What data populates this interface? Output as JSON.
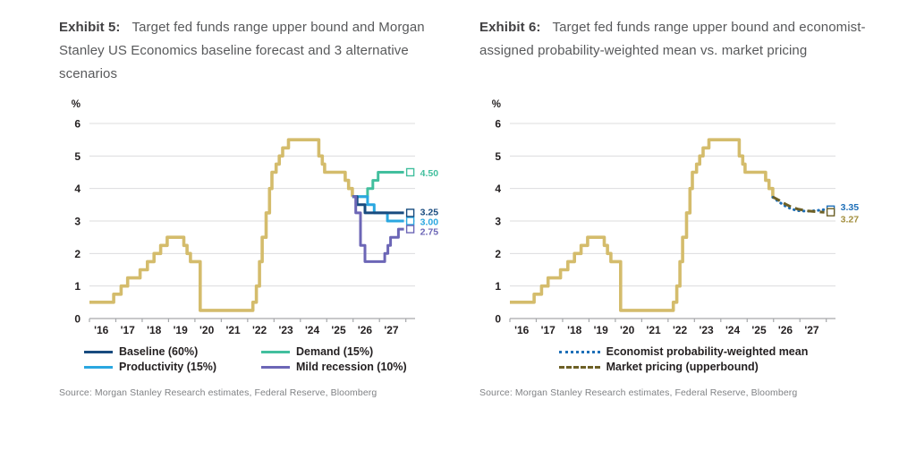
{
  "panels": [
    {
      "exhibit_label": "Exhibit 5:",
      "title": "Target fed funds range upper bound and Morgan Stanley US Economics baseline forecast and 3 alternative scenarios",
      "source": "Source: Morgan Stanley Research estimates, Federal Reserve, Bloomberg"
    },
    {
      "exhibit_label": "Exhibit 6:",
      "title": "Target fed funds range upper bound and economist-assigned probability-weighted mean vs. market pricing",
      "source": "Source: Morgan Stanley Research estimates, Federal Reserve, Bloomberg"
    }
  ],
  "colors": {
    "history_gold": "#D4BC6C",
    "baseline_navy": "#184B7F",
    "productivity_blue": "#2AA7E0",
    "demand_teal": "#42BF9E",
    "recession_purple": "#6C66B6",
    "econ_mean_blue": "#1E6FB8",
    "market_olive": "#6D6026",
    "market_label": "#A38F3F",
    "grid": "#DCDCDE",
    "axis": "#A6A8AB",
    "tick_text": "#231F20"
  },
  "chart_data": [
    {
      "type": "line",
      "title": "Exhibit 5: Target fed funds range upper bound and Morgan Stanley US Economics baseline forecast and 3 alternative scenarios",
      "ylabel": "%",
      "ylim": [
        0,
        6
      ],
      "yticks": [
        0,
        1,
        2,
        3,
        4,
        5,
        6
      ],
      "x_years": [
        2016,
        2017,
        2018,
        2019,
        2020,
        2021,
        2022,
        2023,
        2024,
        2025,
        2026,
        2027
      ],
      "xtick_labels": [
        "'16",
        "'17",
        "'18",
        "'19",
        "'20",
        "'21",
        "'22",
        "'23",
        "'24",
        "'25",
        "'26",
        "'27"
      ],
      "grid": true,
      "legend_position": "bottom",
      "series": [
        {
          "name": "Fed funds target upper bound (history)",
          "color": "#D4BC6C",
          "style": "solid",
          "width": 3.6,
          "step": true,
          "points": [
            [
              2016.0,
              0.5
            ],
            [
              2016.92,
              0.75
            ],
            [
              2017.2,
              1.0
            ],
            [
              2017.45,
              1.25
            ],
            [
              2017.92,
              1.5
            ],
            [
              2018.2,
              1.75
            ],
            [
              2018.45,
              2.0
            ],
            [
              2018.7,
              2.25
            ],
            [
              2018.95,
              2.5
            ],
            [
              2019.58,
              2.25
            ],
            [
              2019.7,
              2.0
            ],
            [
              2019.83,
              1.75
            ],
            [
              2020.2,
              0.25
            ],
            [
              2022.2,
              0.5
            ],
            [
              2022.33,
              1.0
            ],
            [
              2022.45,
              1.75
            ],
            [
              2022.55,
              2.5
            ],
            [
              2022.7,
              3.25
            ],
            [
              2022.83,
              4.0
            ],
            [
              2022.92,
              4.5
            ],
            [
              2023.08,
              4.75
            ],
            [
              2023.2,
              5.0
            ],
            [
              2023.33,
              5.25
            ],
            [
              2023.55,
              5.5
            ],
            [
              2024.7,
              5.0
            ],
            [
              2024.83,
              4.75
            ],
            [
              2024.92,
              4.5
            ],
            [
              2025.7,
              4.25
            ],
            [
              2025.83,
              4.0
            ],
            [
              2025.97,
              3.75
            ]
          ]
        },
        {
          "name": "Demand (15%)",
          "color": "#42BF9E",
          "style": "solid",
          "width": 3,
          "step": true,
          "points": [
            [
              2025.97,
              3.75
            ],
            [
              2026.55,
              4.0
            ],
            [
              2026.75,
              4.25
            ],
            [
              2026.95,
              4.5
            ],
            [
              2027.93,
              4.5
            ]
          ],
          "end_label": "4.50",
          "label_dy": 1
        },
        {
          "name": "Productivity (15%)",
          "color": "#2AA7E0",
          "style": "solid",
          "width": 3,
          "step": true,
          "points": [
            [
              2025.97,
              3.75
            ],
            [
              2026.55,
              3.5
            ],
            [
              2026.8,
              3.25
            ],
            [
              2027.3,
              3.0
            ],
            [
              2027.93,
              3.0
            ]
          ],
          "end_label": "3.00",
          "label_dy": 1
        },
        {
          "name": "Baseline (60%)",
          "color": "#184B7F",
          "style": "solid",
          "width": 3,
          "step": true,
          "points": [
            [
              2025.97,
              3.75
            ],
            [
              2026.15,
              3.5
            ],
            [
              2026.45,
              3.25
            ],
            [
              2027.93,
              3.25
            ]
          ],
          "end_label": "3.25",
          "label_dy": -1
        },
        {
          "name": "Mild recession (10%)",
          "color": "#6C66B6",
          "style": "solid",
          "width": 3,
          "step": true,
          "points": [
            [
              2025.97,
              3.75
            ],
            [
              2026.1,
              3.25
            ],
            [
              2026.28,
              2.25
            ],
            [
              2026.45,
              1.75
            ],
            [
              2027.2,
              2.0
            ],
            [
              2027.32,
              2.25
            ],
            [
              2027.42,
              2.5
            ],
            [
              2027.72,
              2.75
            ],
            [
              2027.93,
              2.75
            ]
          ],
          "end_label": "2.75",
          "label_dy": 3
        }
      ],
      "legend": [
        {
          "label": "Baseline (60%)",
          "color": "#184B7F",
          "style": "solid"
        },
        {
          "label": "Demand (15%)",
          "color": "#42BF9E",
          "style": "solid"
        },
        {
          "label": "Productivity (15%)",
          "color": "#2AA7E0",
          "style": "solid"
        },
        {
          "label": "Mild recession (10%)",
          "color": "#6C66B6",
          "style": "solid"
        }
      ],
      "legend_layout": "two-column"
    },
    {
      "type": "line",
      "title": "Exhibit 6: Target fed funds range upper bound and economist-assigned probability-weighted mean vs. market pricing",
      "ylabel": "%",
      "ylim": [
        0,
        6
      ],
      "yticks": [
        0,
        1,
        2,
        3,
        4,
        5,
        6
      ],
      "x_years": [
        2016,
        2017,
        2018,
        2019,
        2020,
        2021,
        2022,
        2023,
        2024,
        2025,
        2026,
        2027
      ],
      "xtick_labels": [
        "'16",
        "'17",
        "'18",
        "'19",
        "'20",
        "'21",
        "'22",
        "'23",
        "'24",
        "'25",
        "'26",
        "'27"
      ],
      "grid": true,
      "legend_position": "bottom",
      "series": [
        {
          "name": "Fed funds target upper bound (history)",
          "color": "#D4BC6C",
          "style": "solid",
          "width": 3.6,
          "step": true,
          "points": [
            [
              2016.0,
              0.5
            ],
            [
              2016.92,
              0.75
            ],
            [
              2017.2,
              1.0
            ],
            [
              2017.45,
              1.25
            ],
            [
              2017.92,
              1.5
            ],
            [
              2018.2,
              1.75
            ],
            [
              2018.45,
              2.0
            ],
            [
              2018.7,
              2.25
            ],
            [
              2018.95,
              2.5
            ],
            [
              2019.58,
              2.25
            ],
            [
              2019.7,
              2.0
            ],
            [
              2019.83,
              1.75
            ],
            [
              2020.2,
              0.25
            ],
            [
              2022.2,
              0.5
            ],
            [
              2022.33,
              1.0
            ],
            [
              2022.45,
              1.75
            ],
            [
              2022.55,
              2.5
            ],
            [
              2022.7,
              3.25
            ],
            [
              2022.83,
              4.0
            ],
            [
              2022.92,
              4.5
            ],
            [
              2023.08,
              4.75
            ],
            [
              2023.2,
              5.0
            ],
            [
              2023.33,
              5.25
            ],
            [
              2023.55,
              5.5
            ],
            [
              2024.7,
              5.0
            ],
            [
              2024.83,
              4.75
            ],
            [
              2024.92,
              4.5
            ],
            [
              2025.7,
              4.25
            ],
            [
              2025.83,
              4.0
            ],
            [
              2025.97,
              3.75
            ]
          ]
        },
        {
          "name": "Economist probability-weighted mean",
          "color": "#1E6FB8",
          "style": "dotted",
          "width": 3,
          "step": false,
          "points": [
            [
              2025.97,
              3.73
            ],
            [
              2026.15,
              3.62
            ],
            [
              2026.4,
              3.48
            ],
            [
              2026.65,
              3.38
            ],
            [
              2026.9,
              3.32
            ],
            [
              2027.25,
              3.3
            ],
            [
              2027.6,
              3.32
            ],
            [
              2027.93,
              3.35
            ]
          ],
          "end_label": "3.35",
          "label_dy": -3
        },
        {
          "name": "Market pricing (upperbound)",
          "color": "#6D6026",
          "style": "dashed",
          "width": 3,
          "step": false,
          "points": [
            [
              2025.97,
              3.74
            ],
            [
              2026.2,
              3.64
            ],
            [
              2026.45,
              3.52
            ],
            [
              2026.7,
              3.42
            ],
            [
              2026.95,
              3.36
            ],
            [
              2027.3,
              3.31
            ],
            [
              2027.6,
              3.29
            ],
            [
              2027.93,
              3.27
            ]
          ],
          "end_label": "3.27",
          "label_dy": 8,
          "label_color": "#A38F3F"
        }
      ],
      "legend": [
        {
          "label": "Economist probability-weighted mean",
          "color": "#1E6FB8",
          "style": "dotted"
        },
        {
          "label": "Market pricing (upperbound)",
          "color": "#6D6026",
          "style": "dashed"
        }
      ],
      "legend_layout": "centered"
    }
  ]
}
